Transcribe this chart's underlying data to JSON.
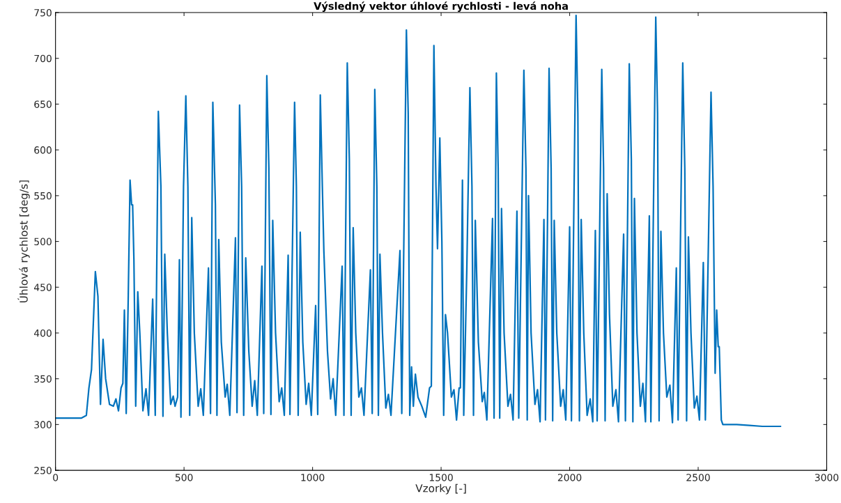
{
  "chart_data": {
    "type": "line",
    "title": "Výsledný vektor úhlové rychlosti - levá noha",
    "xlabel": "Vzorky [-]",
    "ylabel": "Úhlová rychlost [deg/s]",
    "xlim": [
      0,
      3000
    ],
    "xticks": [
      0,
      500,
      1000,
      1500,
      2000,
      2500,
      3000
    ],
    "ylim": [
      250,
      750
    ],
    "yticks": [
      250,
      300,
      350,
      400,
      450,
      500,
      550,
      600,
      650,
      700,
      750
    ],
    "grid": false,
    "legend": false,
    "line_style": "solid",
    "series": [
      {
        "color": "#0072bd",
        "x": [
          0,
          50,
          100,
          120,
          130,
          140,
          155,
          165,
          175,
          185,
          195,
          210,
          225,
          235,
          245,
          255,
          262,
          268,
          275,
          283,
          290,
          296,
          300,
          305,
          312,
          320,
          328,
          340,
          352,
          362,
          378,
          388,
          400,
          410,
          418,
          425,
          435,
          448,
          458,
          465,
          475,
          482,
          488,
          498,
          507,
          515,
          522,
          530,
          540,
          555,
          565,
          575,
          595,
          603,
          612,
          622,
          628,
          635,
          645,
          660,
          668,
          678,
          700,
          706,
          716,
          724,
          732,
          740,
          752,
          765,
          775,
          785,
          803,
          810,
          822,
          830,
          838,
          845,
          856,
          870,
          880,
          890,
          905,
          912,
          930,
          937,
          944,
          952,
          962,
          975,
          985,
          995,
          1012,
          1020,
          1030,
          1038,
          1044,
          1058,
          1070,
          1080,
          1090,
          1115,
          1122,
          1135,
          1143,
          1150,
          1158,
          1168,
          1180,
          1190,
          1200,
          1225,
          1232,
          1242,
          1250,
          1256,
          1262,
          1272,
          1285,
          1295,
          1305,
          1340,
          1347,
          1365,
          1372,
          1378,
          1385,
          1392,
          1400,
          1410,
          1425,
          1440,
          1455,
          1462,
          1472,
          1480,
          1486,
          1495,
          1503,
          1510,
          1517,
          1525,
          1540,
          1550,
          1560,
          1570,
          1575,
          1583,
          1588,
          1600,
          1612,
          1620,
          1626,
          1633,
          1645,
          1660,
          1668,
          1678,
          1700,
          1706,
          1715,
          1722,
          1728,
          1735,
          1745,
          1760,
          1770,
          1780,
          1795,
          1802,
          1822,
          1830,
          1835,
          1840,
          1850,
          1865,
          1875,
          1885,
          1900,
          1906,
          1920,
          1928,
          1934,
          1940,
          1950,
          1965,
          1975,
          1985,
          2000,
          2007,
          2025,
          2032,
          2038,
          2045,
          2055,
          2068,
          2080,
          2090,
          2100,
          2107,
          2125,
          2132,
          2138,
          2146,
          2155,
          2168,
          2180,
          2190,
          2210,
          2217,
          2232,
          2240,
          2246,
          2252,
          2262,
          2275,
          2285,
          2295,
          2310,
          2316,
          2335,
          2342,
          2348,
          2355,
          2365,
          2378,
          2390,
          2400,
          2415,
          2422,
          2440,
          2448,
          2455,
          2462,
          2472,
          2485,
          2495,
          2505,
          2520,
          2528,
          2550,
          2558,
          2566,
          2572,
          2578,
          2582,
          2590,
          2596,
          2650,
          2700,
          2750,
          2800,
          2820
        ],
        "values": [
          307,
          307,
          307,
          310,
          340,
          360,
          467,
          440,
          322,
          393,
          350,
          322,
          320,
          328,
          315,
          340,
          345,
          425,
          312,
          440,
          567,
          540,
          540,
          480,
          320,
          445,
          400,
          315,
          339,
          310,
          437,
          310,
          642,
          560,
          309,
          486,
          400,
          322,
          331,
          320,
          330,
          480,
          308,
          560,
          659,
          560,
          310,
          526,
          400,
          320,
          339,
          310,
          471,
          312,
          652,
          540,
          310,
          502,
          390,
          330,
          344,
          310,
          504,
          313,
          649,
          560,
          310,
          482,
          380,
          320,
          348,
          310,
          473,
          312,
          681,
          580,
          311,
          523,
          400,
          325,
          340,
          310,
          485,
          311,
          652,
          560,
          310,
          510,
          390,
          322,
          345,
          310,
          430,
          311,
          660,
          560,
          489,
          380,
          328,
          350,
          310,
          473,
          310,
          695,
          590,
          310,
          515,
          400,
          330,
          340,
          310,
          469,
          312,
          666,
          560,
          310,
          486,
          400,
          318,
          333,
          310,
          490,
          312,
          731,
          640,
          310,
          363,
          320,
          355,
          330,
          320,
          308,
          340,
          342,
          714,
          560,
          492,
          613,
          500,
          310,
          420,
          400,
          330,
          338,
          305,
          340,
          340,
          567,
          310,
          470,
          668,
          560,
          310,
          523,
          390,
          325,
          335,
          305,
          525,
          307,
          684,
          580,
          307,
          536,
          400,
          320,
          333,
          305,
          533,
          307,
          687,
          580,
          305,
          550,
          400,
          322,
          338,
          303,
          524,
          305,
          689,
          580,
          304,
          523,
          400,
          320,
          338,
          305,
          516,
          304,
          747,
          640,
          304,
          524,
          400,
          310,
          328,
          303,
          512,
          304,
          688,
          580,
          304,
          552,
          420,
          320,
          338,
          303,
          508,
          304,
          694,
          590,
          303,
          547,
          400,
          320,
          345,
          303,
          528,
          303,
          745,
          640,
          304,
          511,
          400,
          330,
          343,
          302,
          471,
          305,
          695,
          580,
          304,
          505,
          400,
          318,
          331,
          305,
          477,
          305,
          663,
          560,
          356,
          425,
          385,
          385,
          305,
          300,
          300,
          299,
          298,
          298,
          298
        ]
      }
    ]
  }
}
